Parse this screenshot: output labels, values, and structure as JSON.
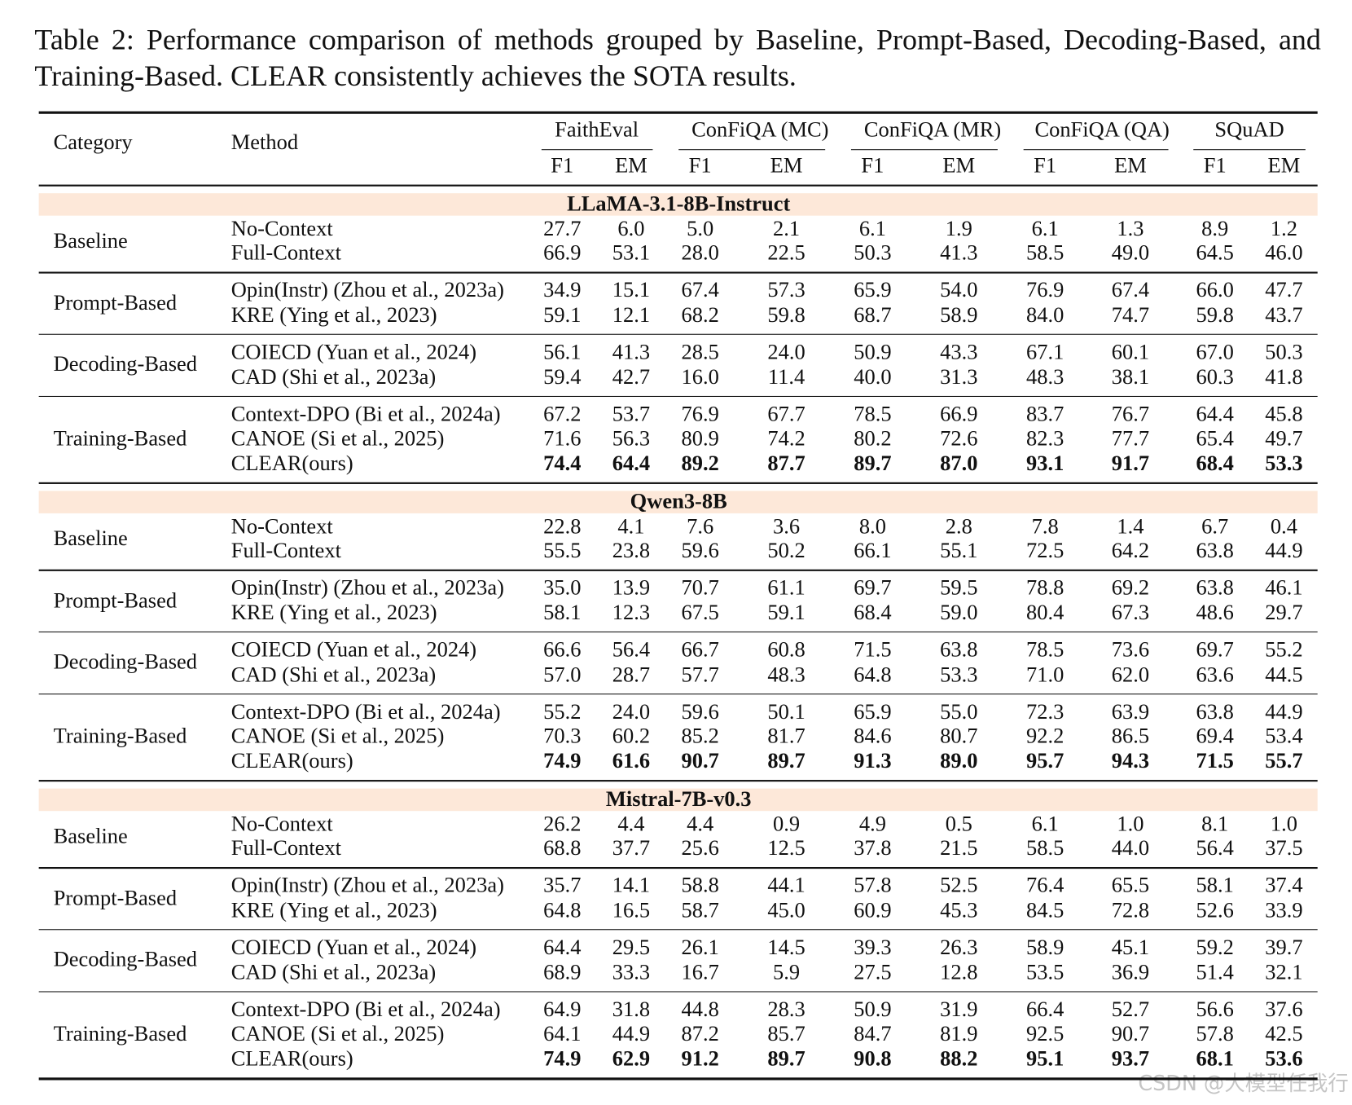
{
  "caption": "Table 2: Performance comparison of methods grouped by Baseline, Prompt-Based, Decoding-Based, and Training-Based. CLEAR consistently achieves the SOTA results.",
  "table": {
    "header": {
      "category": "Category",
      "method": "Method",
      "groups": [
        {
          "name": "FaithEval",
          "sub": [
            "F1",
            "EM"
          ]
        },
        {
          "name": "ConFiQA (MC)",
          "sub": [
            "F1",
            "EM"
          ]
        },
        {
          "name": "ConFiQA (MR)",
          "sub": [
            "F1",
            "EM"
          ]
        },
        {
          "name": "ConFiQA (QA)",
          "sub": [
            "F1",
            "EM"
          ]
        },
        {
          "name": "SQuAD",
          "sub": [
            "F1",
            "EM"
          ]
        }
      ]
    },
    "sections": [
      {
        "model": "LLaMA-3.1-8B-Instruct",
        "groups": [
          {
            "category": "Baseline",
            "rows": [
              {
                "method": "No-Context",
                "values": [
                  "27.7",
                  "6.0",
                  "5.0",
                  "2.1",
                  "6.1",
                  "1.9",
                  "6.1",
                  "1.3",
                  "8.9",
                  "1.2"
                ]
              },
              {
                "method": "Full-Context",
                "values": [
                  "66.9",
                  "53.1",
                  "28.0",
                  "22.5",
                  "50.3",
                  "41.3",
                  "58.5",
                  "49.0",
                  "64.5",
                  "46.0"
                ]
              }
            ]
          },
          {
            "category": "Prompt-Based",
            "rows": [
              {
                "method": "Opin(Instr) (Zhou et al., 2023a)",
                "values": [
                  "34.9",
                  "15.1",
                  "67.4",
                  "57.3",
                  "65.9",
                  "54.0",
                  "76.9",
                  "67.4",
                  "66.0",
                  "47.7"
                ]
              },
              {
                "method": "KRE (Ying et al., 2023)",
                "values": [
                  "59.1",
                  "12.1",
                  "68.2",
                  "59.8",
                  "68.7",
                  "58.9",
                  "84.0",
                  "74.7",
                  "59.8",
                  "43.7"
                ]
              }
            ]
          },
          {
            "category": "Decoding-Based",
            "rows": [
              {
                "method": "COIECD (Yuan et al., 2024)",
                "values": [
                  "56.1",
                  "41.3",
                  "28.5",
                  "24.0",
                  "50.9",
                  "43.3",
                  "67.1",
                  "60.1",
                  "67.0",
                  "50.3"
                ]
              },
              {
                "method": "CAD (Shi et al., 2023a)",
                "values": [
                  "59.4",
                  "42.7",
                  "16.0",
                  "11.4",
                  "40.0",
                  "31.3",
                  "48.3",
                  "38.1",
                  "60.3",
                  "41.8"
                ]
              }
            ]
          },
          {
            "category": "Training-Based",
            "rows": [
              {
                "method": "Context-DPO (Bi et al., 2024a)",
                "values": [
                  "67.2",
                  "53.7",
                  "76.9",
                  "67.7",
                  "78.5",
                  "66.9",
                  "83.7",
                  "76.7",
                  "64.4",
                  "45.8"
                ]
              },
              {
                "method": "CANOE (Si et al., 2025)",
                "values": [
                  "71.6",
                  "56.3",
                  "80.9",
                  "74.2",
                  "80.2",
                  "72.6",
                  "82.3",
                  "77.7",
                  "65.4",
                  "49.7"
                ]
              },
              {
                "method": "CLEAR(ours)",
                "values": [
                  "74.4",
                  "64.4",
                  "89.2",
                  "87.7",
                  "89.7",
                  "87.0",
                  "93.1",
                  "91.7",
                  "68.4",
                  "53.3"
                ]
              }
            ]
          }
        ]
      },
      {
        "model": "Qwen3-8B",
        "groups": [
          {
            "category": "Baseline",
            "rows": [
              {
                "method": "No-Context",
                "values": [
                  "22.8",
                  "4.1",
                  "7.6",
                  "3.6",
                  "8.0",
                  "2.8",
                  "7.8",
                  "1.4",
                  "6.7",
                  "0.4"
                ]
              },
              {
                "method": "Full-Context",
                "values": [
                  "55.5",
                  "23.8",
                  "59.6",
                  "50.2",
                  "66.1",
                  "55.1",
                  "72.5",
                  "64.2",
                  "63.8",
                  "44.9"
                ]
              }
            ]
          },
          {
            "category": "Prompt-Based",
            "rows": [
              {
                "method": "Opin(Instr) (Zhou et al., 2023a)",
                "values": [
                  "35.0",
                  "13.9",
                  "70.7",
                  "61.1",
                  "69.7",
                  "59.5",
                  "78.8",
                  "69.2",
                  "63.8",
                  "46.1"
                ]
              },
              {
                "method": "KRE (Ying et al., 2023)",
                "values": [
                  "58.1",
                  "12.3",
                  "67.5",
                  "59.1",
                  "68.4",
                  "59.0",
                  "80.4",
                  "67.3",
                  "48.6",
                  "29.7"
                ]
              }
            ]
          },
          {
            "category": "Decoding-Based",
            "rows": [
              {
                "method": "COIECD (Yuan et al., 2024)",
                "values": [
                  "66.6",
                  "56.4",
                  "66.7",
                  "60.8",
                  "71.5",
                  "63.8",
                  "78.5",
                  "73.6",
                  "69.7",
                  "55.2"
                ]
              },
              {
                "method": "CAD (Shi et al., 2023a)",
                "values": [
                  "57.0",
                  "28.7",
                  "57.7",
                  "48.3",
                  "64.8",
                  "53.3",
                  "71.0",
                  "62.0",
                  "63.6",
                  "44.5"
                ]
              }
            ]
          },
          {
            "category": "Training-Based",
            "rows": [
              {
                "method": "Context-DPO (Bi et al., 2024a)",
                "values": [
                  "55.2",
                  "24.0",
                  "59.6",
                  "50.1",
                  "65.9",
                  "55.0",
                  "72.3",
                  "63.9",
                  "63.8",
                  "44.9"
                ]
              },
              {
                "method": "CANOE (Si et al., 2025)",
                "values": [
                  "70.3",
                  "60.2",
                  "85.2",
                  "81.7",
                  "84.6",
                  "80.7",
                  "92.2",
                  "86.5",
                  "69.4",
                  "53.4"
                ]
              },
              {
                "method": "CLEAR(ours)",
                "values": [
                  "74.9",
                  "61.6",
                  "90.7",
                  "89.7",
                  "91.3",
                  "89.0",
                  "95.7",
                  "94.3",
                  "71.5",
                  "55.7"
                ]
              }
            ]
          }
        ]
      },
      {
        "model": "Mistral-7B-v0.3",
        "groups": [
          {
            "category": "Baseline",
            "rows": [
              {
                "method": "No-Context",
                "values": [
                  "26.2",
                  "4.4",
                  "4.4",
                  "0.9",
                  "4.9",
                  "0.5",
                  "6.1",
                  "1.0",
                  "8.1",
                  "1.0"
                ]
              },
              {
                "method": "Full-Context",
                "values": [
                  "68.8",
                  "37.7",
                  "25.6",
                  "12.5",
                  "37.8",
                  "21.5",
                  "58.5",
                  "44.0",
                  "56.4",
                  "37.5"
                ]
              }
            ]
          },
          {
            "category": "Prompt-Based",
            "rows": [
              {
                "method": "Opin(Instr) (Zhou et al., 2023a)",
                "values": [
                  "35.7",
                  "14.1",
                  "58.8",
                  "44.1",
                  "57.8",
                  "52.5",
                  "76.4",
                  "65.5",
                  "58.1",
                  "37.4"
                ]
              },
              {
                "method": "KRE (Ying et al., 2023)",
                "values": [
                  "64.8",
                  "16.5",
                  "58.7",
                  "45.0",
                  "60.9",
                  "45.3",
                  "84.5",
                  "72.8",
                  "52.6",
                  "33.9"
                ]
              }
            ]
          },
          {
            "category": "Decoding-Based",
            "rows": [
              {
                "method": "COIECD (Yuan et al., 2024)",
                "values": [
                  "64.4",
                  "29.5",
                  "26.1",
                  "14.5",
                  "39.3",
                  "26.3",
                  "58.9",
                  "45.1",
                  "59.2",
                  "39.7"
                ]
              },
              {
                "method": "CAD (Shi et al., 2023a)",
                "values": [
                  "68.9",
                  "33.3",
                  "16.7",
                  "5.9",
                  "27.5",
                  "12.8",
                  "53.5",
                  "36.9",
                  "51.4",
                  "32.1"
                ]
              }
            ]
          },
          {
            "category": "Training-Based",
            "rows": [
              {
                "method": "Context-DPO (Bi et al., 2024a)",
                "values": [
                  "64.9",
                  "31.8",
                  "44.8",
                  "28.3",
                  "50.9",
                  "31.9",
                  "66.4",
                  "52.7",
                  "56.6",
                  "37.6"
                ]
              },
              {
                "method": "CANOE (Si et al., 2025)",
                "values": [
                  "64.1",
                  "44.9",
                  "87.2",
                  "85.7",
                  "84.7",
                  "81.9",
                  "92.5",
                  "90.7",
                  "57.8",
                  "42.5"
                ]
              },
              {
                "method": "CLEAR(ours)",
                "values": [
                  "74.9",
                  "62.9",
                  "91.2",
                  "89.7",
                  "90.8",
                  "88.2",
                  "95.1",
                  "93.7",
                  "68.1",
                  "53.6"
                ]
              }
            ]
          }
        ]
      }
    ]
  },
  "watermark": "CSDN @大模型任我行"
}
